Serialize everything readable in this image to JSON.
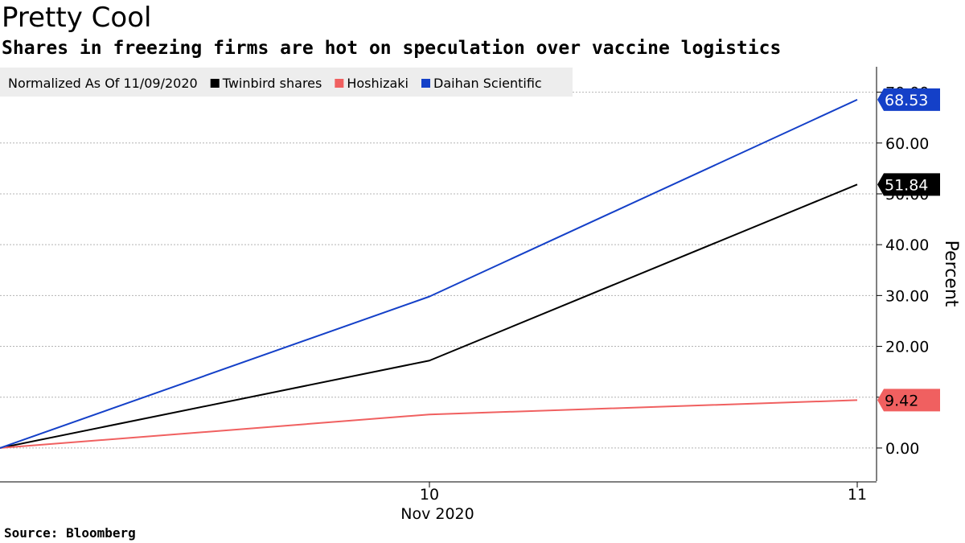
{
  "header": {
    "title": "Pretty Cool",
    "subtitle": "Shares in freezing firms are hot on speculation over vaccine logistics"
  },
  "footer": {
    "source": "Source: Bloomberg"
  },
  "chart_data": {
    "type": "line",
    "legend_note": "Normalized As Of 11/09/2020",
    "legend_position": "top-left",
    "x": [
      "9",
      "10",
      "11"
    ],
    "x_tick_labels": [
      "10",
      "11"
    ],
    "x_tick_values": [
      "10",
      "11"
    ],
    "x_sub_label": "Nov 2020",
    "ylabel": "Percent",
    "ylim": [
      -6.5,
      75
    ],
    "y_ticks": [
      0,
      10,
      20,
      30,
      40,
      50,
      60,
      70
    ],
    "y_tick_labels": [
      "0.00",
      "10.00",
      "20.00",
      "30.00",
      "40.00",
      "50.00",
      "60.00",
      "70.00"
    ],
    "y_axis_side": "right",
    "grid": true,
    "series": [
      {
        "name": "Twinbird shares",
        "color": "#000000",
        "values": [
          0,
          17.2,
          51.84
        ],
        "end_label": "51.84",
        "end_label_text_color": "#ffffff"
      },
      {
        "name": "Hoshizaki",
        "color": "#f06060",
        "values": [
          0,
          6.6,
          9.42
        ],
        "end_label": "9.42",
        "end_label_text_color": "#000000"
      },
      {
        "name": "Daihan Scientific",
        "color": "#1440c8",
        "values": [
          0,
          29.8,
          68.53
        ],
        "end_label": "68.53",
        "end_label_text_color": "#ffffff"
      }
    ]
  }
}
